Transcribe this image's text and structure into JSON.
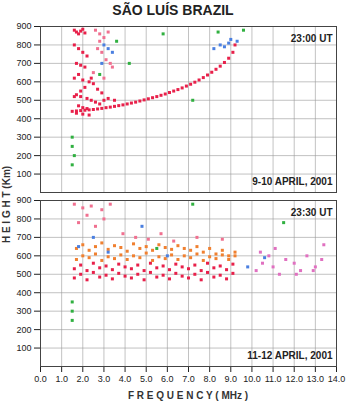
{
  "chart_data": {
    "type": "scatter",
    "title": "SÃO LUÍS BRAZIL",
    "xlabel": "F R E Q U E N C Y ( MHz )",
    "ylabel": "H E I G H T  (Km)",
    "panels": [
      {
        "type": "scatter",
        "time": "23:00 UT",
        "date": "9-10 APRIL, 2001",
        "grid": true,
        "tick_labels": "y",
        "marker": "square",
        "xlim": [
          0,
          14
        ],
        "ylim": [
          0,
          900
        ],
        "xticks": [
          {
            "value": 0,
            "label": "0.0"
          },
          {
            "value": 1,
            "label": "1.0"
          },
          {
            "value": 2,
            "label": "2.0"
          },
          {
            "value": 3,
            "label": "3.0"
          },
          {
            "value": 4,
            "label": "4.0"
          },
          {
            "value": 5,
            "label": "5.0"
          },
          {
            "value": 6,
            "label": "6.0"
          },
          {
            "value": 7,
            "label": "7.0"
          },
          {
            "value": 8,
            "label": "8.0"
          },
          {
            "value": 9,
            "label": "9.0"
          },
          {
            "value": 10,
            "label": "10.0"
          },
          {
            "value": 11,
            "label": "11.0"
          },
          {
            "value": 12,
            "label": "12.0"
          },
          {
            "value": 13,
            "label": "13.0"
          },
          {
            "value": 14,
            "label": "14.0"
          }
        ],
        "yticks": [
          100,
          200,
          300,
          400,
          500,
          600,
          700,
          800,
          900
        ],
        "series": [
          {
            "color": "#e8204a",
            "x": [
              1.5,
              1.7,
              1.9,
              2.1,
              2.3,
              2.5,
              2.7,
              2.9,
              3.1,
              3.3,
              3.5,
              3.7,
              3.9,
              4.1,
              4.3,
              4.5,
              4.7,
              4.9,
              5.1,
              5.3,
              5.5,
              5.7,
              5.9,
              6.1,
              6.3,
              6.5,
              6.7,
              6.9,
              7.1,
              7.3,
              7.5,
              7.7,
              7.9,
              8.1,
              8.3,
              8.5,
              8.7,
              8.9,
              9.1,
              9.2
            ],
            "values": [
              440,
              442,
              444,
              446,
              448,
              450,
              453,
              456,
              460,
              463,
              467,
              471,
              475,
              480,
              485,
              490,
              496,
              502,
              508,
              514,
              520,
              527,
              534,
              542,
              550,
              558,
              567,
              577,
              587,
              598,
              610,
              623,
              637,
              652,
              668,
              685,
              705,
              728,
              760,
              800
            ]
          },
          {
            "color": "#e8204a",
            "x": [
              1.6,
              1.7,
              1.8,
              1.9,
              2.0,
              2.1,
              1.6,
              1.8,
              2.0,
              2.2,
              1.7,
              1.9,
              2.1,
              1.6,
              1.8,
              2.0,
              2.3,
              2.5,
              2.7,
              1.7,
              1.9,
              2.2,
              2.4,
              2.6,
              2.8,
              3.0,
              1.8,
              2.0,
              2.2,
              1.6,
              1.9,
              2.1,
              2.4,
              2.9,
              3.2,
              3.5,
              1.7,
              2.0,
              2.3
            ],
            "values": [
              880,
              870,
              860,
              875,
              885,
              865,
              800,
              780,
              760,
              740,
              700,
              690,
              680,
              620,
              640,
              610,
              600,
              590,
              560,
              530,
              520,
              510,
              500,
              490,
              480,
              500,
              470,
              460,
              455,
              520,
              550,
              570,
              620,
              540,
              510,
              500,
              430,
              425,
              420
            ]
          },
          {
            "color": "#f07090",
            "x": [
              2.6,
              2.8,
              3.0,
              3.2,
              2.7,
              2.9,
              3.1,
              3.3,
              2.5,
              3.0,
              3.4,
              2.8
            ],
            "values": [
              880,
              860,
              840,
              870,
              780,
              760,
              720,
              700,
              650,
              620,
              680,
              820
            ]
          },
          {
            "color": "#4a7fe0",
            "x": [
              3.0,
              3.2,
              3.4,
              8.2,
              8.5,
              8.7,
              8.9,
              9.0,
              9.3,
              2.9
            ],
            "values": [
              800,
              780,
              760,
              780,
              800,
              790,
              810,
              830,
              820,
              700
            ]
          },
          {
            "color": "#30b040",
            "x": [
              1.5,
              1.5,
              1.6,
              2.8,
              3.6,
              5.8,
              7.2,
              8.4,
              9.6,
              4.2,
              1.5
            ],
            "values": [
              300,
              250,
              200,
              640,
              820,
              860,
              500,
              870,
              880,
              700,
              150
            ]
          }
        ]
      },
      {
        "type": "scatter",
        "time": "23:30 UT",
        "date": "11-12 APRIL, 2001",
        "grid": true,
        "tick_labels": true,
        "marker": "square",
        "xlim": [
          0,
          14
        ],
        "ylim": [
          0,
          900
        ],
        "xticks": [
          {
            "value": 0,
            "label": "0.0"
          },
          {
            "value": 1,
            "label": "1.0"
          },
          {
            "value": 2,
            "label": "2.0"
          },
          {
            "value": 3,
            "label": "3.0"
          },
          {
            "value": 4,
            "label": "4.0"
          },
          {
            "value": 5,
            "label": "5.0"
          },
          {
            "value": 6,
            "label": "6.0"
          },
          {
            "value": 7,
            "label": "7.0"
          },
          {
            "value": 8,
            "label": "8.0"
          },
          {
            "value": 9,
            "label": "9.0"
          },
          {
            "value": 10,
            "label": "10.0"
          },
          {
            "value": 11,
            "label": "11.0"
          },
          {
            "value": 12,
            "label": "12.0"
          },
          {
            "value": 13,
            "label": "13.0"
          },
          {
            "value": 14,
            "label": "14.0"
          }
        ],
        "yticks": [
          100,
          200,
          300,
          400,
          500,
          600,
          700,
          800,
          900
        ],
        "series": [
          {
            "color": "#e8204a",
            "x": [
              1.6,
              1.9,
              2.2,
              2.5,
              2.8,
              3.1,
              3.4,
              3.7,
              4.0,
              4.3,
              4.6,
              4.9,
              5.2,
              5.5,
              5.8,
              6.1,
              6.4,
              6.7,
              7.0,
              7.3,
              7.6,
              7.9,
              8.2,
              8.5,
              8.8,
              9.1,
              1.6,
              1.9,
              2.2,
              2.5,
              2.8,
              3.1,
              3.4,
              3.7,
              4.0,
              4.3,
              4.6,
              4.9,
              5.2,
              5.5,
              5.8,
              6.1,
              6.4,
              6.7,
              7.0,
              7.3,
              7.6,
              7.9,
              8.2,
              8.5,
              8.8,
              9.1
            ],
            "values": [
              480,
              500,
              470,
              510,
              485,
              495,
              475,
              505,
              490,
              480,
              500,
              470,
              510,
              485,
              495,
              475,
              505,
              490,
              480,
              500,
              470,
              510,
              485,
              495,
              475,
              505,
              530,
              550,
              520,
              560,
              535,
              545,
              525,
              555,
              540,
              530,
              550,
              520,
              560,
              535,
              545,
              525,
              555,
              540,
              530,
              550,
              520,
              560,
              535,
              545,
              525,
              555
            ]
          },
          {
            "color": "#f08030",
            "x": [
              1.7,
              2.0,
              2.3,
              2.6,
              2.9,
              3.2,
              3.5,
              3.8,
              4.1,
              4.4,
              4.7,
              5.0,
              5.3,
              5.6,
              5.9,
              6.2,
              6.5,
              6.8,
              7.1,
              7.4,
              7.7,
              8.0,
              8.3,
              8.6,
              8.9,
              9.2,
              1.7,
              2.0,
              2.3,
              2.6,
              2.9,
              3.2,
              3.5,
              3.8,
              4.1,
              4.4,
              4.7,
              5.0,
              5.3,
              5.6,
              5.9,
              6.2,
              6.5,
              6.8,
              7.1,
              7.4,
              7.7,
              8.0,
              8.3,
              8.6,
              8.9,
              9.2
            ],
            "values": [
              580,
              600,
              590,
              610,
              575,
              595,
              585,
              605,
              580,
              600,
              590,
              615,
              575,
              595,
              585,
              605,
              580,
              600,
              590,
              610,
              575,
              595,
              585,
              605,
              580,
              600,
              640,
              660,
              630,
              650,
              670,
              635,
              655,
              645,
              625,
              665,
              640,
              650,
              630,
              660,
              645,
              635,
              655,
              640,
              630,
              650,
              620,
              640,
              610,
              630,
              600,
              620
            ]
          },
          {
            "color": "#f07090",
            "x": [
              1.6,
              2.0,
              2.4,
              2.9,
              3.3,
              1.8,
              2.6,
              3.9,
              4.5,
              5.1,
              5.7,
              2.2,
              3.0,
              6.3,
              7.4,
              8.6
            ],
            "values": [
              880,
              860,
              870,
              850,
              880,
              780,
              760,
              720,
              700,
              690,
              720,
              820,
              800,
              680,
              700,
              690
            ]
          },
          {
            "color": "#e070c0",
            "x": [
              10.2,
              10.5,
              10.8,
              11.0,
              11.3,
              11.6,
              12.0,
              12.3,
              12.6,
              13.0,
              13.3,
              10.4,
              11.1,
              12.1,
              12.9,
              13.4
            ],
            "values": [
              520,
              560,
              600,
              540,
              500,
              580,
              560,
              520,
              600,
              540,
              580,
              620,
              640,
              500,
              520,
              660
            ]
          },
          {
            "color": "#4a7fe0",
            "x": [
              1.8,
              2.5,
              3.2,
              4.8,
              6.0,
              9.8,
              10.6
            ],
            "values": [
              650,
              700,
              620,
              760,
              600,
              540,
              590
            ]
          },
          {
            "color": "#30b040",
            "x": [
              1.5,
              1.5,
              1.5,
              5.5,
              7.2,
              11.5
            ],
            "values": [
              350,
              300,
              250,
              640,
              880,
              780
            ]
          }
        ]
      }
    ]
  }
}
